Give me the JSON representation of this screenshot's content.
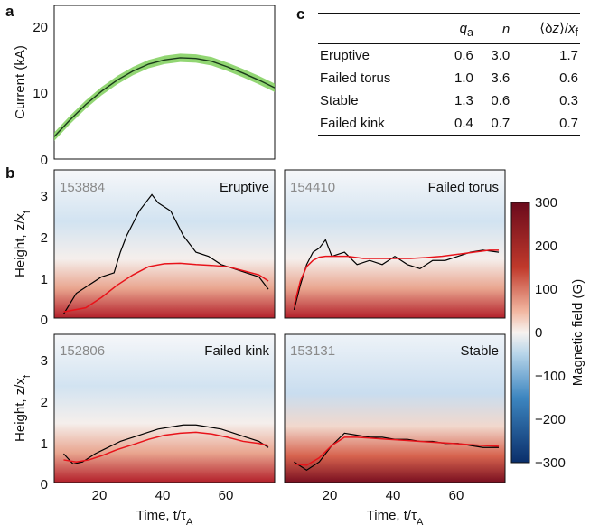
{
  "panel_labels": {
    "a": "a",
    "b": "b",
    "c": "c"
  },
  "panel_a": {
    "ylabel": "Current (kA)",
    "yticks": [
      "0",
      "10",
      "20"
    ]
  },
  "table": {
    "headers": [
      "",
      "q_a",
      "n",
      "⟨δz⟩/x_f"
    ],
    "rows": [
      {
        "name": "Eruptive",
        "qa": "0.6",
        "n": "3.0",
        "dz": "1.7"
      },
      {
        "name": "Failed torus",
        "qa": "1.0",
        "n": "3.6",
        "dz": "0.6"
      },
      {
        "name": "Stable",
        "qa": "1.3",
        "n": "0.6",
        "dz": "0.3"
      },
      {
        "name": "Failed kink",
        "qa": "0.4",
        "n": "0.7",
        "dz": "0.7"
      }
    ]
  },
  "panels_b": [
    {
      "shot": "153884",
      "title": "Eruptive"
    },
    {
      "shot": "154410",
      "title": "Failed torus"
    },
    {
      "shot": "152806",
      "title": "Failed kink"
    },
    {
      "shot": "153131",
      "title": "Stable"
    }
  ],
  "b_axes": {
    "ylabel": "Height, z/x_f",
    "yticks": [
      "0",
      "1",
      "2",
      "3"
    ],
    "xticks": [
      "20",
      "40",
      "60"
    ],
    "xlabel": "Time, t/τ_A"
  },
  "colorbar": {
    "label": "Magnetic field (G)",
    "ticks": [
      "300",
      "200",
      "100",
      "0",
      "−100",
      "−200",
      "−300"
    ],
    "color_max": "#6a0a1c",
    "color_mid": "#f7f3f0",
    "color_min": "#0a2e6a"
  },
  "chart_data": [
    {
      "type": "line",
      "panel": "a",
      "ylabel": "Current (kA)",
      "xlim": [
        5,
        75
      ],
      "ylim": [
        0,
        22
      ],
      "line_color": "#1a3a1a",
      "band_color": "#7fcf5a",
      "series": [
        {
          "x": [
            5,
            10,
            15,
            20,
            25,
            30,
            35,
            40,
            45,
            50,
            55,
            60,
            65,
            70,
            75
          ],
          "y": [
            3.2,
            5.6,
            7.8,
            9.7,
            11.3,
            12.6,
            13.6,
            14.2,
            14.5,
            14.4,
            14.0,
            13.2,
            12.3,
            11.3,
            10.2
          ],
          "band": 0.6
        }
      ]
    },
    {
      "type": "line",
      "panel": "b",
      "note_title": "Eruptive",
      "xlim": [
        5,
        75
      ],
      "ylim": [
        0,
        3.6
      ],
      "series": [
        {
          "color": "#000000",
          "x": [
            8,
            12,
            16,
            20,
            24,
            26,
            28,
            30,
            32,
            34,
            36,
            38,
            40,
            42,
            46,
            50,
            54,
            58,
            62,
            66,
            70,
            73
          ],
          "y": [
            0.1,
            0.6,
            0.8,
            1.0,
            1.1,
            1.6,
            2.0,
            2.3,
            2.6,
            2.8,
            3.0,
            2.8,
            2.7,
            2.6,
            2.0,
            1.6,
            1.5,
            1.3,
            1.2,
            1.1,
            1.0,
            0.7
          ]
        },
        {
          "color": "#e8131a",
          "x": [
            8,
            15,
            20,
            25,
            30,
            35,
            40,
            45,
            50,
            55,
            60,
            65,
            70,
            73
          ],
          "y": [
            0.15,
            0.25,
            0.5,
            0.8,
            1.05,
            1.25,
            1.32,
            1.33,
            1.3,
            1.28,
            1.25,
            1.15,
            1.05,
            0.9
          ]
        }
      ]
    },
    {
      "type": "line",
      "panel": "b",
      "note_title": "Failed torus",
      "xlim": [
        5,
        75
      ],
      "ylim": [
        0,
        3.6
      ],
      "series": [
        {
          "color": "#000000",
          "x": [
            8,
            10,
            12,
            14,
            16,
            18,
            20,
            24,
            28,
            32,
            36,
            40,
            44,
            48,
            52,
            56,
            60,
            64,
            68,
            73
          ],
          "y": [
            0.2,
            0.8,
            1.3,
            1.6,
            1.7,
            1.9,
            1.5,
            1.6,
            1.3,
            1.4,
            1.3,
            1.5,
            1.3,
            1.2,
            1.4,
            1.4,
            1.5,
            1.6,
            1.65,
            1.6
          ]
        },
        {
          "color": "#e8131a",
          "x": [
            8,
            10,
            12,
            14,
            16,
            18,
            20,
            25,
            30,
            35,
            40,
            45,
            50,
            55,
            60,
            65,
            70,
            73
          ],
          "y": [
            0.3,
            0.9,
            1.25,
            1.4,
            1.48,
            1.5,
            1.5,
            1.5,
            1.45,
            1.45,
            1.45,
            1.45,
            1.47,
            1.5,
            1.55,
            1.6,
            1.65,
            1.65
          ]
        }
      ]
    },
    {
      "type": "line",
      "panel": "b",
      "note_title": "Failed kink",
      "xlim": [
        5,
        75
      ],
      "ylim": [
        0,
        3.6
      ],
      "series": [
        {
          "color": "#000000",
          "x": [
            8,
            11,
            14,
            18,
            22,
            26,
            30,
            34,
            38,
            42,
            46,
            50,
            54,
            58,
            62,
            66,
            70,
            73
          ],
          "y": [
            0.7,
            0.45,
            0.5,
            0.7,
            0.85,
            1.0,
            1.1,
            1.2,
            1.3,
            1.35,
            1.4,
            1.4,
            1.35,
            1.3,
            1.2,
            1.1,
            1.0,
            0.85
          ]
        },
        {
          "color": "#e8131a",
          "x": [
            8,
            12,
            16,
            20,
            25,
            30,
            35,
            40,
            45,
            50,
            55,
            60,
            65,
            70,
            73
          ],
          "y": [
            0.55,
            0.5,
            0.55,
            0.65,
            0.8,
            0.92,
            1.05,
            1.15,
            1.2,
            1.22,
            1.18,
            1.1,
            1.0,
            0.95,
            0.9
          ]
        }
      ]
    },
    {
      "type": "line",
      "panel": "b",
      "note_title": "Stable",
      "xlim": [
        5,
        75
      ],
      "ylim": [
        0,
        3.6
      ],
      "series": [
        {
          "color": "#000000",
          "x": [
            8,
            12,
            16,
            20,
            24,
            28,
            32,
            36,
            40,
            44,
            48,
            52,
            56,
            60,
            64,
            68,
            73
          ],
          "y": [
            0.5,
            0.3,
            0.5,
            0.9,
            1.2,
            1.15,
            1.1,
            1.1,
            1.05,
            1.05,
            1.0,
            1.0,
            0.95,
            0.95,
            0.9,
            0.85,
            0.85
          ]
        },
        {
          "color": "#e8131a",
          "x": [
            8,
            12,
            16,
            20,
            24,
            28,
            32,
            36,
            40,
            44,
            48,
            52,
            56,
            60,
            64,
            68,
            73
          ],
          "y": [
            0.45,
            0.42,
            0.6,
            0.9,
            1.1,
            1.1,
            1.08,
            1.06,
            1.04,
            1.02,
            1.0,
            0.98,
            0.96,
            0.94,
            0.92,
            0.9,
            0.88
          ]
        }
      ]
    }
  ]
}
